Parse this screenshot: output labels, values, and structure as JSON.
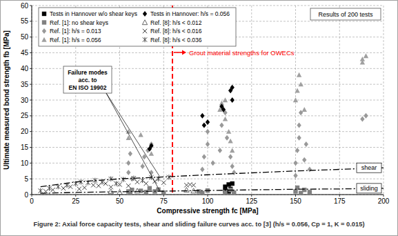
{
  "chart_data": {
    "type": "scatter",
    "caption": "Figure 2: Axial force capacity tests, shear and sliding failure curves acc. to [3] (h/s = 0.056, Cp = 1, K = 0.015)",
    "x_label": "Compressive strength fc [MPa]",
    "y_label": "Ultimate measured bond strength fb [MPa]",
    "xlim": [
      0,
      200
    ],
    "ylim": [
      0,
      60
    ],
    "xticks": [
      0,
      25,
      50,
      75,
      100,
      125,
      150,
      175,
      200
    ],
    "yticks": [
      0,
      5,
      10,
      15,
      20,
      25,
      30,
      35,
      40,
      45,
      50,
      55,
      60
    ],
    "grid": true,
    "legend": "upper left",
    "annotations": {
      "results": "Results of 200 tests",
      "failure_modes": [
        "Failure modes",
        "acc. to",
        "EN ISO 19902"
      ]
    },
    "reference_line": {
      "x": 80,
      "label": "Grout material strengths for OWECs",
      "color": "#ff0000"
    },
    "series": [
      {
        "name": "Tests in Hannover w/o shear keys",
        "color": "#000000",
        "marker": "square",
        "x": [
          110,
          112,
          113,
          114,
          110,
          112
        ],
        "values": [
          2.5,
          3.2,
          1.8,
          3.5,
          1.2,
          1.0
        ]
      },
      {
        "name": "Ref. [1]: no shear keys",
        "color": "#808080",
        "marker": "square",
        "x": [
          55,
          56,
          57,
          62,
          65,
          67,
          70,
          72,
          75,
          95,
          97,
          100,
          110,
          113,
          115,
          150,
          151,
          153,
          155,
          158
        ],
        "values": [
          1.0,
          0.7,
          1.5,
          1.2,
          0.8,
          2.0,
          1.0,
          1.6,
          0.6,
          1.0,
          0.5,
          1.3,
          0.8,
          1.5,
          0.6,
          1.0,
          2.2,
          0.5,
          1.5,
          0.8
        ]
      },
      {
        "name": "Ref. [1]: h/s = 0.013",
        "color": "#999999",
        "marker": "diamond",
        "x": [
          55,
          55,
          56,
          57,
          63,
          64,
          66,
          68,
          68,
          97,
          98,
          100,
          100,
          103,
          107,
          108,
          110,
          111,
          113,
          114,
          115,
          150,
          150,
          151,
          152,
          152,
          153,
          155,
          156,
          158,
          188,
          190
        ],
        "values": [
          7,
          10,
          13,
          5,
          9,
          12,
          14,
          16,
          7,
          8,
          12,
          16,
          20,
          10,
          14,
          22,
          26,
          18,
          12,
          9,
          7,
          6,
          10,
          14,
          18,
          22,
          26,
          11,
          16,
          8,
          24,
          25
        ]
      },
      {
        "name": "Ref. [1]: h/s = 0.056",
        "color": "#a0a0a0",
        "marker": "triangle",
        "x": [
          55,
          55,
          62,
          68,
          107,
          108,
          110,
          110,
          112,
          113,
          114,
          150,
          151,
          152,
          153,
          155,
          188,
          190,
          188
        ],
        "values": [
          18,
          20,
          19,
          13,
          27,
          29,
          30,
          24,
          20,
          17,
          14,
          30,
          33,
          38,
          35,
          27,
          42,
          44,
          43
        ]
      },
      {
        "name": "Tests in Hannover: h/s = 0.056",
        "color": "#000000",
        "marker": "diamond",
        "x": [
          67,
          68,
          97,
          98,
          100,
          108,
          109,
          113,
          114,
          114
        ],
        "values": [
          14.5,
          15.5,
          25,
          22,
          23,
          28,
          27,
          33,
          34,
          30
        ]
      },
      {
        "name": "Ref. [8]: h/s < 0.012",
        "color": "#555555",
        "marker": "triangle-open",
        "x": [
          45,
          50,
          60,
          88,
          92
        ],
        "values": [
          1.0,
          0.8,
          1.2,
          1.5,
          1.2
        ]
      },
      {
        "name": "Ref. [8]: h/s < 0.016",
        "color": "#404040",
        "marker": "x",
        "x": [
          8,
          12,
          18,
          22,
          27,
          30,
          35,
          38,
          42,
          45,
          50,
          55,
          60,
          65,
          70,
          75,
          88,
          90,
          92
        ],
        "values": [
          1,
          1.5,
          2,
          2.5,
          1.8,
          2.2,
          3,
          2.8,
          3.5,
          2.4,
          3.2,
          2.8,
          4,
          3.5,
          4.2,
          3.8,
          3.0,
          3.2,
          3.0
        ]
      },
      {
        "name": "Ref. [8]: h/s < 0.036",
        "color": "#404040",
        "marker": "asterisk",
        "x": [
          5,
          10,
          15,
          20,
          25,
          28,
          32,
          36,
          40,
          45,
          48,
          52,
          58,
          63,
          68,
          72,
          78
        ],
        "values": [
          1.2,
          2,
          2.5,
          3,
          3.5,
          4,
          3.8,
          4.5,
          4,
          5,
          3.5,
          4.8,
          5.2,
          4.5,
          5.5,
          5,
          5.5
        ]
      },
      {
        "name": "shear",
        "type": "line",
        "color": "#000000",
        "line_style": "dashdot",
        "x": [
          5,
          25,
          50,
          75,
          100,
          125,
          150,
          175,
          200
        ],
        "values": [
          2.5,
          4.0,
          5.0,
          5.6,
          6.3,
          6.9,
          7.5,
          8.0,
          8.5
        ]
      },
      {
        "name": "sliding",
        "type": "line",
        "color": "#000000",
        "line_style": "dashdot",
        "x": [
          5,
          25,
          50,
          75,
          100,
          125,
          150,
          175,
          200
        ],
        "values": [
          0.4,
          0.7,
          0.9,
          1.1,
          1.3,
          1.5,
          1.7,
          1.8,
          2.0
        ]
      }
    ]
  }
}
